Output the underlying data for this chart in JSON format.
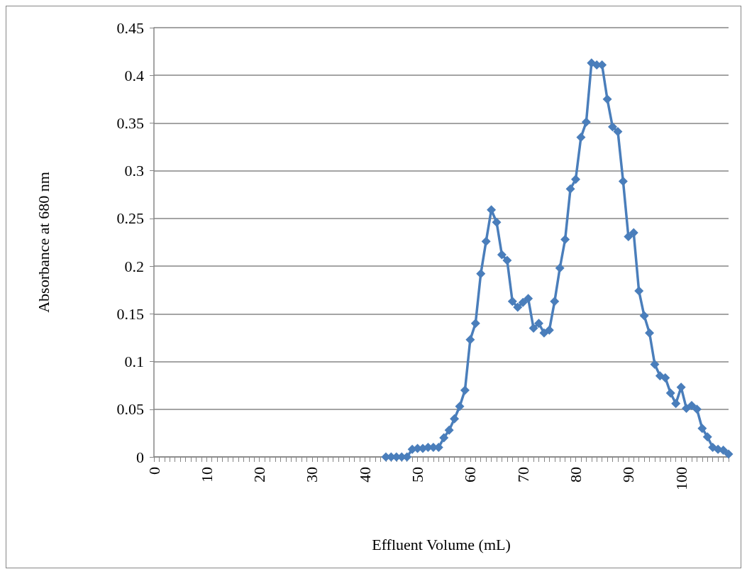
{
  "chart_data": {
    "type": "line",
    "xlabel": "Effluent Volume (mL)",
    "ylabel": "Absorbance at 680 nm",
    "x": [
      44,
      45,
      46,
      47,
      48,
      49,
      50,
      51,
      52,
      53,
      54,
      55,
      56,
      57,
      58,
      59,
      60,
      61,
      62,
      63,
      64,
      65,
      66,
      67,
      68,
      69,
      70,
      71,
      72,
      73,
      74,
      75,
      76,
      77,
      78,
      79,
      80,
      81,
      82,
      83,
      84,
      85,
      86,
      87,
      88,
      89,
      90,
      91,
      92,
      93,
      94,
      95,
      96,
      97,
      98,
      99,
      100,
      101,
      102,
      103,
      104,
      105,
      106,
      107,
      108,
      109
    ],
    "values": [
      0,
      0,
      0,
      0,
      0,
      0.008,
      0.009,
      0.009,
      0.01,
      0.01,
      0.01,
      0.02,
      0.028,
      0.04,
      0.053,
      0.07,
      0.123,
      0.14,
      0.192,
      0.226,
      0.259,
      0.246,
      0.212,
      0.206,
      0.163,
      0.157,
      0.162,
      0.166,
      0.135,
      0.14,
      0.13,
      0.133,
      0.163,
      0.198,
      0.228,
      0.281,
      0.291,
      0.335,
      0.351,
      0.413,
      0.411,
      0.411,
      0.375,
      0.346,
      0.341,
      0.289,
      0.231,
      0.235,
      0.174,
      0.148,
      0.13,
      0.097,
      0.085,
      0.083,
      0.067,
      0.056,
      0.073,
      0.051,
      0.054,
      0.05,
      0.03,
      0.021,
      0.01,
      0.008,
      0.007,
      0.003
    ],
    "color": "#4a7ebb",
    "marker": "diamond",
    "line_style": "solid",
    "grid": "y",
    "xlim": [
      0,
      109
    ],
    "xticks": [
      0,
      {
        "value": 1,
        "label": null
      },
      {
        "value": 2,
        "label": null
      },
      {
        "value": 3,
        "label": null
      },
      {
        "value": 4,
        "label": null
      },
      {
        "value": 5,
        "label": null
      },
      {
        "value": 6,
        "label": null
      },
      {
        "value": 7,
        "label": null
      },
      {
        "value": 8,
        "label": null
      },
      {
        "value": 9,
        "label": null
      },
      10,
      {
        "value": 11,
        "label": null
      },
      {
        "value": 12,
        "label": null
      },
      {
        "value": 13,
        "label": null
      },
      {
        "value": 14,
        "label": null
      },
      {
        "value": 15,
        "label": null
      },
      {
        "value": 16,
        "label": null
      },
      {
        "value": 17,
        "label": null
      },
      {
        "value": 18,
        "label": null
      },
      {
        "value": 19,
        "label": null
      },
      20,
      {
        "value": 21,
        "label": null
      },
      {
        "value": 22,
        "label": null
      },
      {
        "value": 23,
        "label": null
      },
      {
        "value": 24,
        "label": null
      },
      {
        "value": 25,
        "label": null
      },
      {
        "value": 26,
        "label": null
      },
      {
        "value": 27,
        "label": null
      },
      {
        "value": 28,
        "label": null
      },
      {
        "value": 29,
        "label": null
      },
      30,
      {
        "value": 31,
        "label": null
      },
      {
        "value": 32,
        "label": null
      },
      {
        "value": 33,
        "label": null
      },
      {
        "value": 34,
        "label": null
      },
      {
        "value": 35,
        "label": null
      },
      {
        "value": 36,
        "label": null
      },
      {
        "value": 37,
        "label": null
      },
      {
        "value": 38,
        "label": null
      },
      {
        "value": 39,
        "label": null
      },
      40,
      {
        "value": 41,
        "label": null
      },
      {
        "value": 42,
        "label": null
      },
      {
        "value": 43,
        "label": null
      },
      {
        "value": 44,
        "label": null
      },
      {
        "value": 45,
        "label": null
      },
      {
        "value": 46,
        "label": null
      },
      {
        "value": 47,
        "label": null
      },
      {
        "value": 48,
        "label": null
      },
      {
        "value": 49,
        "label": null
      },
      50,
      {
        "value": 51,
        "label": null
      },
      {
        "value": 52,
        "label": null
      },
      {
        "value": 53,
        "label": null
      },
      {
        "value": 54,
        "label": null
      },
      {
        "value": 55,
        "label": null
      },
      {
        "value": 56,
        "label": null
      },
      {
        "value": 57,
        "label": null
      },
      {
        "value": 58,
        "label": null
      },
      {
        "value": 59,
        "label": null
      },
      60,
      {
        "value": 61,
        "label": null
      },
      {
        "value": 62,
        "label": null
      },
      {
        "value": 63,
        "label": null
      },
      {
        "value": 64,
        "label": null
      },
      {
        "value": 65,
        "label": null
      },
      {
        "value": 66,
        "label": null
      },
      {
        "value": 67,
        "label": null
      },
      {
        "value": 68,
        "label": null
      },
      {
        "value": 69,
        "label": null
      },
      70,
      {
        "value": 71,
        "label": null
      },
      {
        "value": 72,
        "label": null
      },
      {
        "value": 73,
        "label": null
      },
      {
        "value": 74,
        "label": null
      },
      {
        "value": 75,
        "label": null
      },
      {
        "value": 76,
        "label": null
      },
      {
        "value": 77,
        "label": null
      },
      {
        "value": 78,
        "label": null
      },
      {
        "value": 79,
        "label": null
      },
      80,
      {
        "value": 81,
        "label": null
      },
      {
        "value": 82,
        "label": null
      },
      {
        "value": 83,
        "label": null
      },
      {
        "value": 84,
        "label": null
      },
      {
        "value": 85,
        "label": null
      },
      {
        "value": 86,
        "label": null
      },
      {
        "value": 87,
        "label": null
      },
      {
        "value": 88,
        "label": null
      },
      {
        "value": 89,
        "label": null
      },
      90,
      {
        "value": 91,
        "label": null
      },
      {
        "value": 92,
        "label": null
      },
      {
        "value": 93,
        "label": null
      },
      {
        "value": 94,
        "label": null
      },
      {
        "value": 95,
        "label": null
      },
      {
        "value": 96,
        "label": null
      },
      {
        "value": 97,
        "label": null
      },
      {
        "value": 98,
        "label": null
      },
      {
        "value": 99,
        "label": null
      },
      100,
      {
        "value": 101,
        "label": null
      },
      {
        "value": 102,
        "label": null
      },
      {
        "value": 103,
        "label": null
      },
      {
        "value": 104,
        "label": null
      },
      {
        "value": 105,
        "label": null
      },
      {
        "value": 106,
        "label": null
      },
      {
        "value": 107,
        "label": null
      },
      {
        "value": 108,
        "label": null
      },
      {
        "value": 109,
        "label": null
      }
    ],
    "ylim": [
      0,
      0.45
    ],
    "yticks": [
      0,
      0.05,
      0.1,
      0.15,
      0.2,
      0.25,
      0.3,
      0.35,
      0.4,
      0.45
    ]
  }
}
